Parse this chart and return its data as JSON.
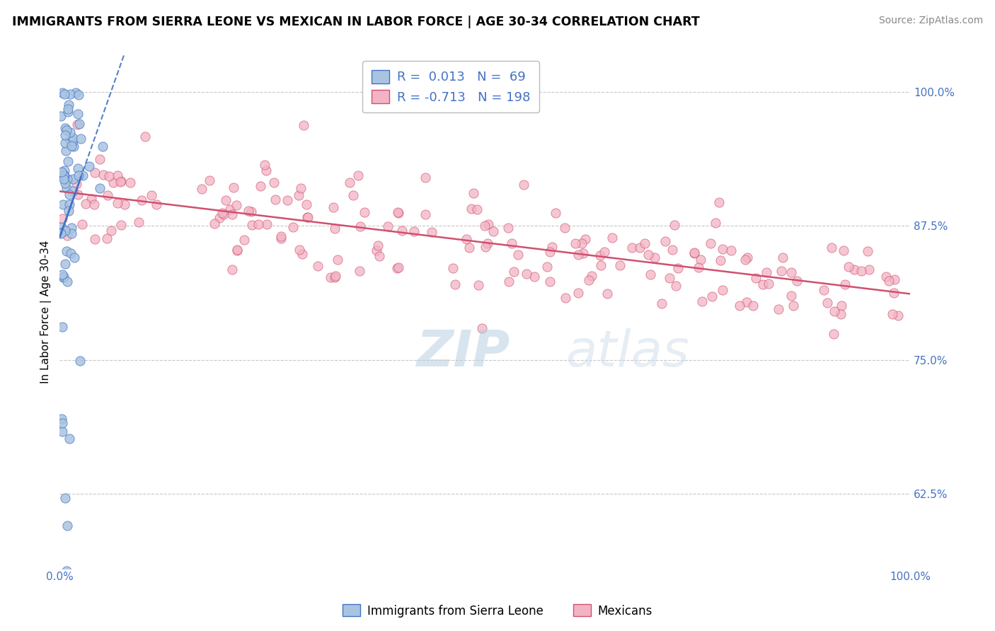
{
  "title": "IMMIGRANTS FROM SIERRA LEONE VS MEXICAN IN LABOR FORCE | AGE 30-34 CORRELATION CHART",
  "source": "Source: ZipAtlas.com",
  "ylabel": "In Labor Force | Age 30-34",
  "xlim": [
    0.0,
    1.0
  ],
  "ylim": [
    0.555,
    1.035
  ],
  "yticks": [
    0.625,
    0.75,
    0.875,
    1.0
  ],
  "ytick_labels": [
    "62.5%",
    "75.0%",
    "87.5%",
    "100.0%"
  ],
  "sierra_color": "#a8c4e0",
  "mexican_color": "#f2b4c4",
  "trend_sierra_color": "#4472c4",
  "trend_mexican_color": "#d05070",
  "background_color": "#ffffff",
  "grid_color": "#c8c8c8",
  "label_color": "#4472c4",
  "title_fontsize": 12.5,
  "axis_label_fontsize": 11,
  "tick_fontsize": 11,
  "source_fontsize": 10,
  "sierra_n": 69,
  "mexican_n": 198,
  "sierra_R": 0.013,
  "mexican_R": -0.713
}
